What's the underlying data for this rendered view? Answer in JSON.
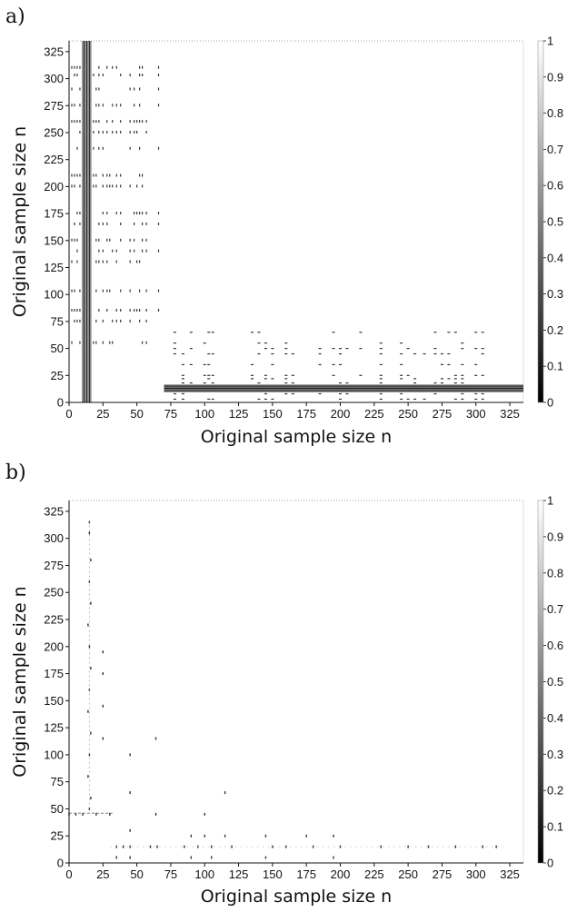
{
  "chart_data": [
    {
      "panel": "a)",
      "type": "heatmap",
      "xlabel": "Original sample size  n",
      "ylabel": "Original sample size  n",
      "xlim": [
        0,
        335
      ],
      "ylim": [
        0,
        335
      ],
      "xticks": [
        0,
        25,
        50,
        75,
        100,
        125,
        150,
        175,
        200,
        225,
        250,
        275,
        300,
        325
      ],
      "yticks": [
        0,
        25,
        50,
        75,
        100,
        125,
        150,
        175,
        200,
        225,
        250,
        275,
        300,
        325
      ],
      "colorbar": {
        "min": 0,
        "max": 1,
        "ticks": [
          0,
          0.1,
          0.2,
          0.3,
          0.4,
          0.5,
          0.6,
          0.7,
          0.8,
          0.9,
          1
        ],
        "colormap": "gray"
      },
      "features": {
        "vertical_columns": [
          10,
          11,
          12,
          13,
          14,
          15,
          16
        ],
        "horizontal_rows": [
          10,
          11,
          12,
          13,
          14,
          15,
          16
        ],
        "row_bands": [
          103,
          140,
          150,
          200,
          235,
          290,
          303
        ],
        "col_bands": [
          50,
          52,
          56,
          66,
          103,
          140,
          145,
          200,
          215,
          270,
          285
        ]
      }
    },
    {
      "panel": "b)",
      "type": "heatmap",
      "xlabel": "Original sample size  n",
      "ylabel": "Original sample size  n",
      "xlim": [
        0,
        335
      ],
      "ylim": [
        0,
        335
      ],
      "xticks": [
        0,
        25,
        50,
        75,
        100,
        125,
        150,
        175,
        200,
        225,
        250,
        275,
        300,
        325
      ],
      "yticks": [
        0,
        25,
        50,
        75,
        100,
        125,
        150,
        175,
        200,
        225,
        250,
        275,
        300,
        325
      ],
      "colorbar": {
        "min": 0,
        "max": 1,
        "ticks": [
          0,
          0.1,
          0.2,
          0.3,
          0.4,
          0.5,
          0.6,
          0.7,
          0.8,
          0.9,
          1
        ],
        "colormap": "gray"
      },
      "features": {
        "vertical_columns": [
          15,
          16
        ],
        "horizontal_rows": [
          15,
          46
        ],
        "points": [
          [
            15,
            315
          ],
          [
            15,
            305
          ],
          [
            16,
            280
          ],
          [
            15,
            260
          ],
          [
            16,
            240
          ],
          [
            14,
            220
          ],
          [
            15,
            200
          ],
          [
            16,
            180
          ],
          [
            15,
            160
          ],
          [
            14,
            140
          ],
          [
            16,
            120
          ],
          [
            15,
            100
          ],
          [
            14,
            80
          ],
          [
            16,
            60
          ],
          [
            15,
            50
          ],
          [
            25,
            195
          ],
          [
            25,
            175
          ],
          [
            25,
            145
          ],
          [
            25,
            115
          ],
          [
            45,
            100
          ],
          [
            45,
            65
          ],
          [
            45,
            30
          ],
          [
            64,
            115
          ],
          [
            64,
            45
          ],
          [
            100,
            45
          ],
          [
            115,
            65
          ],
          [
            0,
            45
          ],
          [
            5,
            45
          ],
          [
            10,
            45
          ],
          [
            20,
            45
          ],
          [
            30,
            45
          ],
          [
            35,
            15
          ],
          [
            40,
            15
          ],
          [
            45,
            15
          ],
          [
            60,
            15
          ],
          [
            65,
            15
          ],
          [
            85,
            15
          ],
          [
            90,
            25
          ],
          [
            95,
            15
          ],
          [
            100,
            25
          ],
          [
            105,
            15
          ],
          [
            115,
            25
          ],
          [
            120,
            15
          ],
          [
            145,
            25
          ],
          [
            150,
            15
          ],
          [
            160,
            15
          ],
          [
            175,
            25
          ],
          [
            180,
            15
          ],
          [
            195,
            25
          ],
          [
            200,
            15
          ],
          [
            230,
            15
          ],
          [
            250,
            15
          ],
          [
            265,
            15
          ],
          [
            285,
            15
          ],
          [
            305,
            15
          ],
          [
            315,
            15
          ],
          [
            35,
            5
          ],
          [
            45,
            5
          ],
          [
            90,
            5
          ],
          [
            105,
            5
          ],
          [
            145,
            5
          ],
          [
            195,
            5
          ]
        ]
      }
    }
  ]
}
